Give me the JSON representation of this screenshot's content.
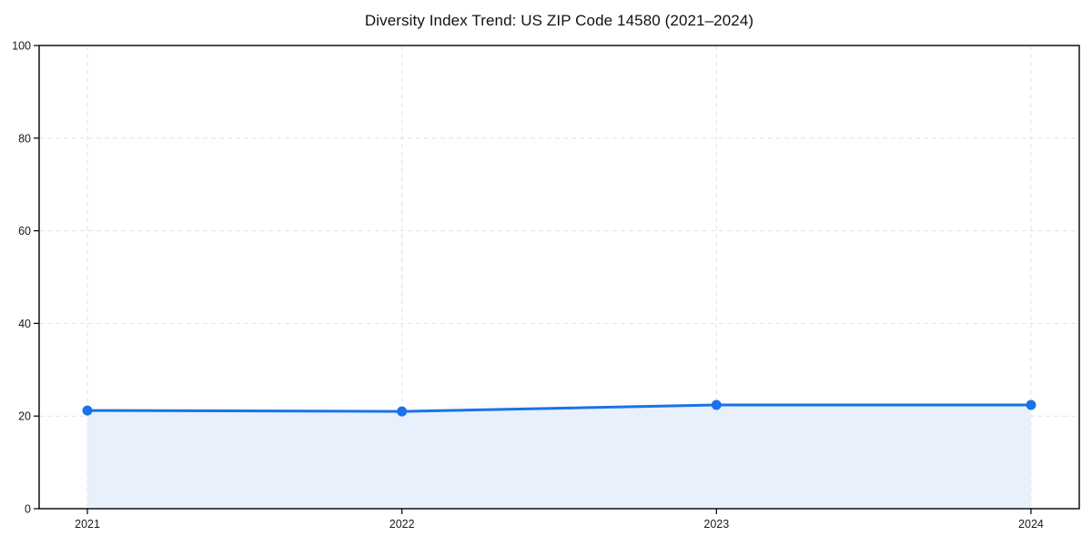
{
  "title": "Diversity Index Trend: US ZIP Code 14580 (2021–2024)",
  "chart_data": {
    "type": "area",
    "title": "Diversity Index Trend: US ZIP Code 14580 (2021–2024)",
    "categories": [
      "2021",
      "2022",
      "2023",
      "2024"
    ],
    "series": [
      {
        "name": "Diversity Index",
        "values": [
          21.2,
          21.0,
          22.4,
          22.4
        ]
      }
    ],
    "xlabel": "",
    "ylabel": "",
    "ylim": [
      0,
      100
    ],
    "yticks": [
      0,
      20,
      40,
      60,
      80,
      100
    ],
    "grid": true,
    "grid_style": "dashed",
    "legend_position": "none",
    "marker": "circle",
    "colors": {
      "line": "#1A73E8",
      "marker": "#1A73E8",
      "area_fill": "#E8F0FC",
      "grid": "#E2E2E2",
      "axis": "#000000",
      "tick_text": "#1A1A1A",
      "title_text": "#111111",
      "background": "#FFFFFF"
    }
  }
}
